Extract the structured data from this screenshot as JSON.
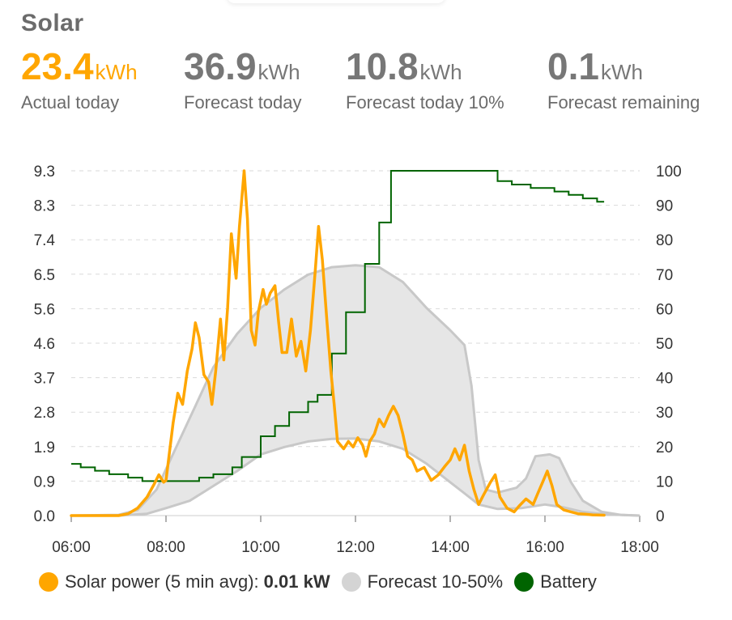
{
  "card": {
    "title": "Solar"
  },
  "stats": [
    {
      "value": "23.4",
      "unit": "kWh",
      "label": "Actual today",
      "color": "#ffa600"
    },
    {
      "value": "36.9",
      "unit": "kWh",
      "label": "Forecast today",
      "color": "#777777"
    },
    {
      "value": "10.8",
      "unit": "kWh",
      "label": "Forecast today 10%",
      "color": "#777777"
    },
    {
      "value": "0.1",
      "unit": "kWh",
      "label": "Forecast remaining",
      "color": "#777777"
    }
  ],
  "legend": {
    "solar_label": "Solar power (5 min avg):",
    "solar_value": "0.01 kW",
    "forecast_label": "Forecast 10-50%",
    "battery_label": "Battery"
  },
  "colors": {
    "solar": "#ffa600",
    "forecast_fill": "#e6e6e6",
    "forecast_swatch": "#d4d4d4",
    "forecast_line": "#c8c8c8",
    "battery": "#006400",
    "grid": "#d9d9d9"
  },
  "chart_data": {
    "type": "line",
    "x_unit": "hours",
    "x_ticks": [
      {
        "x": 6,
        "label": "06:00"
      },
      {
        "x": 8,
        "label": "08:00"
      },
      {
        "x": 10,
        "label": "10:00"
      },
      {
        "x": 12,
        "label": "12:00"
      },
      {
        "x": 14,
        "label": "14:00"
      },
      {
        "x": 16,
        "label": "16:00"
      },
      {
        "x": 18,
        "label": "18:00"
      }
    ],
    "xlim": [
      6,
      18
    ],
    "y_left": {
      "ticks": [
        "0.0",
        "0.9",
        "1.9",
        "2.8",
        "3.7",
        "4.6",
        "5.6",
        "6.5",
        "7.4",
        "8.3",
        "9.3"
      ],
      "lim": [
        0,
        9.3
      ]
    },
    "y_right": {
      "ticks": [
        "0",
        "10",
        "20",
        "30",
        "40",
        "50",
        "60",
        "70",
        "80",
        "90",
        "100"
      ],
      "lim": [
        0,
        100
      ]
    },
    "grid": true,
    "legend_position": "bottom",
    "series": [
      {
        "name": "Solar power",
        "axis": "left",
        "points": [
          [
            6.0,
            0
          ],
          [
            7.0,
            0
          ],
          [
            7.2,
            0.05
          ],
          [
            7.4,
            0.2
          ],
          [
            7.6,
            0.5
          ],
          [
            7.75,
            0.85
          ],
          [
            7.85,
            1.1
          ],
          [
            7.95,
            0.9
          ],
          [
            8.0,
            0.95
          ],
          [
            8.15,
            2.5
          ],
          [
            8.25,
            3.3
          ],
          [
            8.35,
            3.0
          ],
          [
            8.45,
            3.9
          ],
          [
            8.55,
            4.5
          ],
          [
            8.62,
            5.2
          ],
          [
            8.7,
            4.8
          ],
          [
            8.8,
            3.8
          ],
          [
            8.9,
            3.6
          ],
          [
            8.97,
            3.0
          ],
          [
            9.05,
            3.9
          ],
          [
            9.15,
            5.3
          ],
          [
            9.22,
            4.2
          ],
          [
            9.3,
            5.6
          ],
          [
            9.38,
            7.6
          ],
          [
            9.48,
            6.4
          ],
          [
            9.55,
            7.8
          ],
          [
            9.65,
            9.3
          ],
          [
            9.72,
            8.0
          ],
          [
            9.8,
            5.0
          ],
          [
            9.88,
            4.6
          ],
          [
            9.95,
            5.5
          ],
          [
            10.05,
            6.1
          ],
          [
            10.12,
            5.7
          ],
          [
            10.2,
            6.0
          ],
          [
            10.3,
            6.2
          ],
          [
            10.38,
            5.2
          ],
          [
            10.45,
            4.4
          ],
          [
            10.55,
            4.4
          ],
          [
            10.65,
            5.3
          ],
          [
            10.75,
            4.3
          ],
          [
            10.85,
            4.7
          ],
          [
            10.95,
            3.9
          ],
          [
            11.05,
            5.0
          ],
          [
            11.15,
            6.6
          ],
          [
            11.22,
            7.8
          ],
          [
            11.3,
            6.9
          ],
          [
            11.4,
            5.2
          ],
          [
            11.48,
            3.9
          ],
          [
            11.55,
            3.0
          ],
          [
            11.62,
            2.0
          ],
          [
            11.75,
            1.8
          ],
          [
            11.85,
            2.0
          ],
          [
            11.95,
            1.85
          ],
          [
            12.05,
            2.1
          ],
          [
            12.15,
            1.9
          ],
          [
            12.22,
            1.6
          ],
          [
            12.3,
            2.0
          ],
          [
            12.4,
            2.2
          ],
          [
            12.5,
            2.6
          ],
          [
            12.6,
            2.4
          ],
          [
            12.7,
            2.7
          ],
          [
            12.8,
            2.95
          ],
          [
            12.9,
            2.7
          ],
          [
            13.0,
            2.2
          ],
          [
            13.1,
            1.6
          ],
          [
            13.2,
            1.5
          ],
          [
            13.3,
            1.2
          ],
          [
            13.45,
            1.3
          ],
          [
            13.6,
            0.95
          ],
          [
            13.75,
            1.1
          ],
          [
            13.9,
            1.35
          ],
          [
            14.0,
            1.5
          ],
          [
            14.1,
            1.8
          ],
          [
            14.2,
            1.5
          ],
          [
            14.3,
            1.9
          ],
          [
            14.4,
            1.2
          ],
          [
            14.5,
            0.7
          ],
          [
            14.6,
            0.3
          ],
          [
            14.7,
            0.55
          ],
          [
            14.85,
            0.9
          ],
          [
            14.95,
            1.1
          ],
          [
            15.05,
            0.5
          ],
          [
            15.2,
            0.2
          ],
          [
            15.35,
            0.1
          ],
          [
            15.45,
            0.25
          ],
          [
            15.6,
            0.45
          ],
          [
            15.75,
            0.3
          ],
          [
            15.85,
            0.6
          ],
          [
            15.95,
            0.9
          ],
          [
            16.05,
            1.2
          ],
          [
            16.15,
            0.8
          ],
          [
            16.25,
            0.3
          ],
          [
            16.4,
            0.15
          ],
          [
            16.55,
            0.1
          ],
          [
            16.7,
            0.05
          ],
          [
            16.85,
            0.04
          ],
          [
            17.0,
            0.02
          ],
          [
            17.25,
            0.01
          ]
        ]
      },
      {
        "name": "Forecast 10-50%",
        "axis": "left",
        "upper": [
          [
            6.0,
            0
          ],
          [
            7.0,
            0.02
          ],
          [
            7.4,
            0.15
          ],
          [
            7.8,
            0.7
          ],
          [
            8.2,
            1.8
          ],
          [
            8.6,
            2.9
          ],
          [
            9.0,
            4.0
          ],
          [
            9.5,
            4.9
          ],
          [
            10.0,
            5.6
          ],
          [
            10.5,
            6.1
          ],
          [
            11.0,
            6.5
          ],
          [
            11.5,
            6.7
          ],
          [
            12.0,
            6.75
          ],
          [
            12.5,
            6.7
          ],
          [
            13.0,
            6.3
          ],
          [
            13.5,
            5.6
          ],
          [
            14.0,
            5.0
          ],
          [
            14.3,
            4.6
          ],
          [
            14.45,
            3.5
          ],
          [
            14.6,
            1.5
          ],
          [
            14.75,
            0.7
          ],
          [
            15.0,
            0.62
          ],
          [
            15.4,
            0.75
          ],
          [
            15.6,
            1.0
          ],
          [
            15.8,
            1.6
          ],
          [
            16.1,
            1.65
          ],
          [
            16.3,
            1.55
          ],
          [
            16.55,
            0.9
          ],
          [
            16.8,
            0.4
          ],
          [
            17.2,
            0.1
          ],
          [
            17.6,
            0.02
          ],
          [
            18.0,
            0
          ]
        ],
        "lower": [
          [
            6.0,
            0
          ],
          [
            7.0,
            0
          ],
          [
            7.6,
            0.05
          ],
          [
            8.0,
            0.2
          ],
          [
            8.5,
            0.4
          ],
          [
            9.0,
            0.8
          ],
          [
            9.5,
            1.2
          ],
          [
            10.0,
            1.65
          ],
          [
            10.5,
            1.85
          ],
          [
            11.0,
            2.0
          ],
          [
            11.5,
            2.07
          ],
          [
            12.0,
            2.08
          ],
          [
            12.5,
            2.0
          ],
          [
            13.0,
            1.8
          ],
          [
            13.5,
            1.4
          ],
          [
            14.0,
            0.9
          ],
          [
            14.3,
            0.6
          ],
          [
            14.6,
            0.3
          ],
          [
            15.0,
            0.18
          ],
          [
            15.5,
            0.2
          ],
          [
            16.0,
            0.3
          ],
          [
            16.4,
            0.22
          ],
          [
            16.8,
            0.1
          ],
          [
            17.3,
            0.03
          ],
          [
            18.0,
            0
          ]
        ]
      },
      {
        "name": "Battery",
        "axis": "right",
        "points": [
          [
            6.0,
            15
          ],
          [
            6.2,
            14
          ],
          [
            6.5,
            13
          ],
          [
            6.8,
            12
          ],
          [
            7.2,
            11
          ],
          [
            7.5,
            10
          ],
          [
            8.0,
            10
          ],
          [
            8.5,
            10
          ],
          [
            8.7,
            11
          ],
          [
            9.0,
            12
          ],
          [
            9.4,
            14
          ],
          [
            9.6,
            17
          ],
          [
            10.0,
            23
          ],
          [
            10.3,
            26
          ],
          [
            10.6,
            30
          ],
          [
            11.0,
            33
          ],
          [
            11.2,
            35
          ],
          [
            11.5,
            47
          ],
          [
            11.8,
            59
          ],
          [
            12.2,
            73
          ],
          [
            12.5,
            85
          ],
          [
            12.75,
            100
          ],
          [
            13.0,
            100
          ],
          [
            13.5,
            100
          ],
          [
            14.0,
            100
          ],
          [
            14.5,
            100
          ],
          [
            14.95,
            100
          ],
          [
            15.0,
            97
          ],
          [
            15.3,
            96
          ],
          [
            15.7,
            95
          ],
          [
            16.2,
            94
          ],
          [
            16.5,
            93
          ],
          [
            16.8,
            92
          ],
          [
            17.1,
            91
          ],
          [
            17.25,
            91
          ]
        ]
      }
    ]
  }
}
